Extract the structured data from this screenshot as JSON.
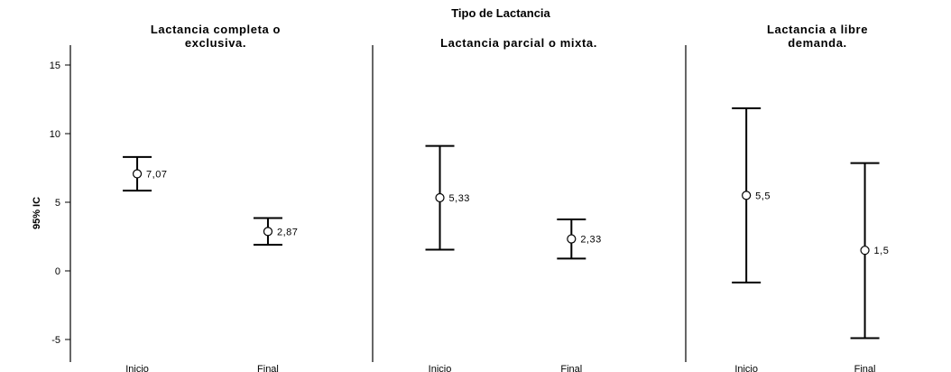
{
  "chart_data": {
    "type": "errorbar",
    "title": "Tipo de Lactancia",
    "ylabel": "95% IC",
    "ylim": [
      -6,
      16
    ],
    "yticks": [
      -5,
      0,
      5,
      10,
      15
    ],
    "categories": [
      "Inicio",
      "Final"
    ],
    "panels": [
      {
        "title_lines": [
          "Lactancia completa o",
          "exclusiva."
        ],
        "points": [
          {
            "category": "Inicio",
            "mean": 7.07,
            "low": 5.85,
            "high": 8.3,
            "label": "7,07"
          },
          {
            "category": "Final",
            "mean": 2.87,
            "low": 1.9,
            "high": 3.85,
            "label": "2,87"
          }
        ]
      },
      {
        "title_lines": [
          "Lactancia parcial o mixta."
        ],
        "points": [
          {
            "category": "Inicio",
            "mean": 5.33,
            "low": 1.55,
            "high": 9.1,
            "label": "5,33"
          },
          {
            "category": "Final",
            "mean": 2.33,
            "low": 0.9,
            "high": 3.75,
            "label": "2,33"
          }
        ]
      },
      {
        "title_lines": [
          "Lactancia a libre",
          "demanda."
        ],
        "points": [
          {
            "category": "Inicio",
            "mean": 5.5,
            "low": -0.85,
            "high": 11.85,
            "label": "5,5"
          },
          {
            "category": "Final",
            "mean": 1.5,
            "low": -4.9,
            "high": 7.85,
            "label": "1,5"
          }
        ]
      }
    ],
    "grid": false,
    "legend": "none"
  }
}
